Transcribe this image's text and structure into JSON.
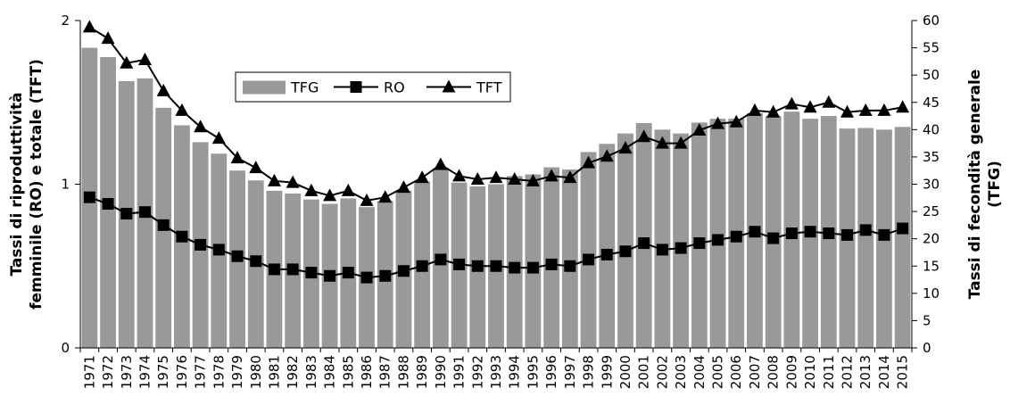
{
  "chart_data": {
    "type": "bar",
    "title": "",
    "categories": [
      "1971",
      "1972",
      "1973",
      "1974",
      "1975",
      "1976",
      "1977",
      "1978",
      "1979",
      "1980",
      "1981",
      "1982",
      "1983",
      "1984",
      "1985",
      "1986",
      "1987",
      "1988",
      "1989",
      "1990",
      "1991",
      "1992",
      "1993",
      "1994",
      "1995",
      "1996",
      "1997",
      "1998",
      "1999",
      "2000",
      "2001",
      "2002",
      "2003",
      "2004",
      "2005",
      "2006",
      "2007",
      "2008",
      "2009",
      "2010",
      "2011",
      "2012",
      "2013",
      "2014",
      "2015"
    ],
    "ylabel_left": "Tassi di riproduttività femminile (RO) e totale (TFT)",
    "ylabel_right": "Tassi di fecondità generale (TFG)",
    "ylim_left": [
      0,
      2
    ],
    "ylim_right": [
      0,
      60
    ],
    "yticks_left": [
      0,
      1,
      2
    ],
    "yticks_right": [
      0,
      5,
      10,
      15,
      20,
      25,
      30,
      35,
      40,
      45,
      50,
      55,
      60
    ],
    "series": [
      {
        "name": "TFG",
        "kind": "bar",
        "axis": "right",
        "color": "#999999",
        "values": [
          55.0,
          53.3,
          48.9,
          49.4,
          44.0,
          40.8,
          37.7,
          35.6,
          32.5,
          30.7,
          28.8,
          28.3,
          27.2,
          26.4,
          27.4,
          25.8,
          26.9,
          28.8,
          30.5,
          32.8,
          30.3,
          29.6,
          30.0,
          31.5,
          31.8,
          33.1,
          32.7,
          35.9,
          37.4,
          39.3,
          41.2,
          40.0,
          39.3,
          41.3,
          42.0,
          42.0,
          43.0,
          42.5,
          43.3,
          42.0,
          42.5,
          40.2,
          40.3,
          40.0,
          40.5
        ]
      },
      {
        "name": "RO",
        "kind": "line",
        "axis": "left",
        "marker": "square",
        "color": "#000000",
        "values": [
          0.92,
          0.88,
          0.82,
          0.83,
          0.75,
          0.68,
          0.63,
          0.6,
          0.56,
          0.53,
          0.48,
          0.48,
          0.46,
          0.44,
          0.46,
          0.43,
          0.44,
          0.47,
          0.5,
          0.54,
          0.51,
          0.5,
          0.5,
          0.49,
          0.49,
          0.51,
          0.5,
          0.54,
          0.57,
          0.59,
          0.64,
          0.6,
          0.61,
          0.64,
          0.66,
          0.68,
          0.71,
          0.67,
          0.7,
          0.71,
          0.7,
          0.69,
          0.72,
          0.69,
          0.73
        ]
      },
      {
        "name": "TFT",
        "kind": "line",
        "axis": "left",
        "marker": "triangle",
        "color": "#000000",
        "values": [
          1.96,
          1.89,
          1.74,
          1.76,
          1.57,
          1.45,
          1.35,
          1.28,
          1.16,
          1.1,
          1.02,
          1.01,
          0.96,
          0.93,
          0.96,
          0.9,
          0.92,
          0.98,
          1.04,
          1.12,
          1.05,
          1.03,
          1.04,
          1.03,
          1.02,
          1.05,
          1.04,
          1.13,
          1.17,
          1.22,
          1.29,
          1.25,
          1.25,
          1.33,
          1.37,
          1.38,
          1.45,
          1.44,
          1.49,
          1.47,
          1.5,
          1.44,
          1.45,
          1.45,
          1.47
        ]
      }
    ],
    "legend_position": "top-center",
    "grid": false
  }
}
